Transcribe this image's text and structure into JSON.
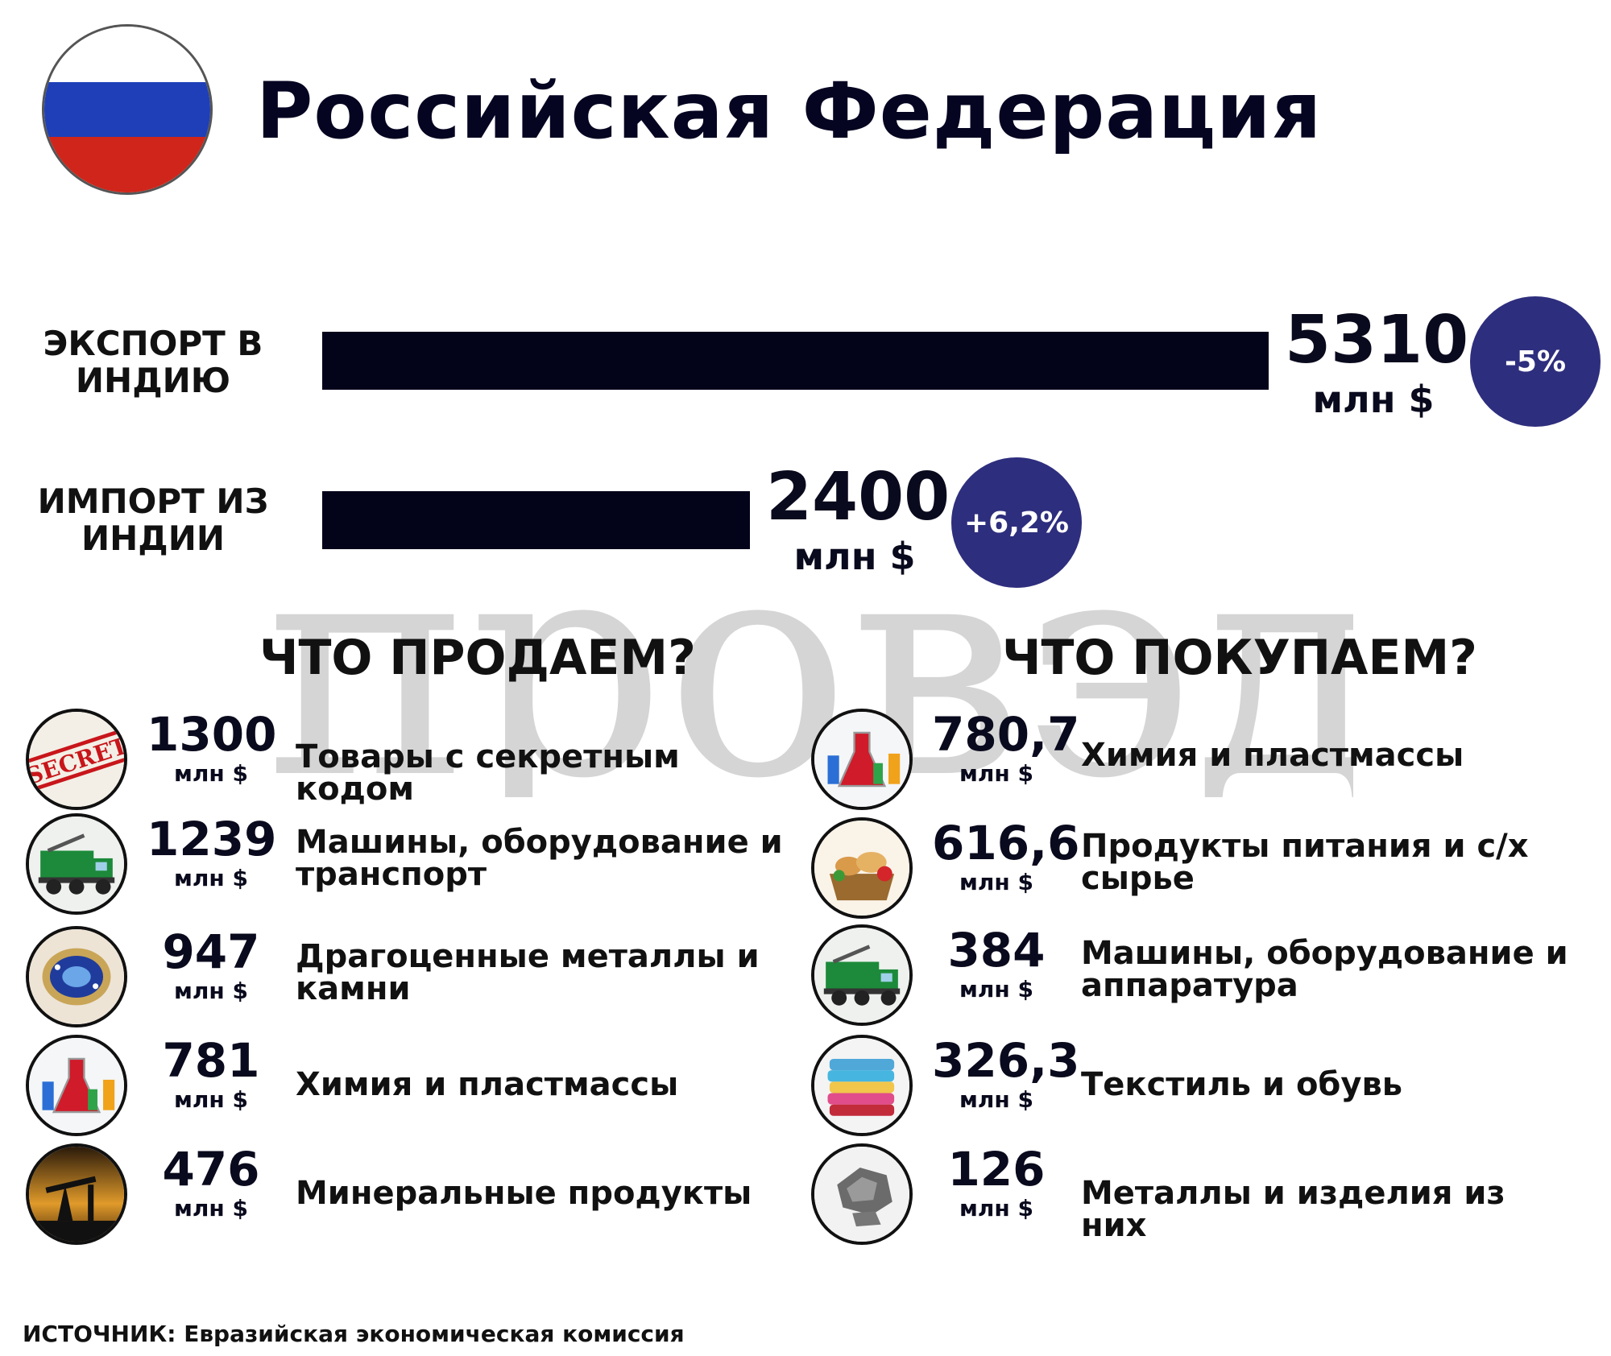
{
  "title": "Российская Федерация",
  "colors": {
    "flag": [
      "#ffffff",
      "#1e3fb8",
      "#d0251a"
    ],
    "badge": "#2e2e7e",
    "bar": "#03031a"
  },
  "watermark": "провэд",
  "trade": {
    "export": {
      "label": "ЭКСПОРТ В ИНДИЮ",
      "value": "5310",
      "unit": "млн $",
      "change": "-5%"
    },
    "import": {
      "label": "ИМПОРТ ИЗ ИНДИИ",
      "value": "2400",
      "unit": "млн $",
      "change": "+6,2%"
    }
  },
  "sell": {
    "heading": "ЧТО ПРОДАЕМ?",
    "items": [
      {
        "icon": "secret-stamp-icon",
        "value": "1300",
        "unit": "млн $",
        "label": "Товары с секретным кодом"
      },
      {
        "icon": "truck-icon",
        "value": "1239",
        "unit": "млн $",
        "label": "Машины, оборудование и транспорт"
      },
      {
        "icon": "gem-ring-icon",
        "value": "947",
        "unit": "млн $",
        "label": "Драгоценные металлы и камни"
      },
      {
        "icon": "chemistry-flasks-icon",
        "value": "781",
        "unit": "млн $",
        "label": "Химия и пластмассы"
      },
      {
        "icon": "oil-pump-icon",
        "value": "476",
        "unit": "млн $",
        "label": "Минеральные продукты"
      }
    ]
  },
  "buy": {
    "heading": "ЧТО ПОКУПАЕМ?",
    "items": [
      {
        "icon": "chemistry-flasks-icon",
        "value": "780,7",
        "unit": "млн $",
        "label": "Химия и пластмассы"
      },
      {
        "icon": "food-basket-icon",
        "value": "616,6",
        "unit": "млн $",
        "label": "Продукты питания и с/х сырье"
      },
      {
        "icon": "truck-icon",
        "value": "384",
        "unit": "млн $",
        "label": "Машины, оборудование и аппаратура"
      },
      {
        "icon": "textile-towels-icon",
        "value": "326,3",
        "unit": "млн $",
        "label": "Текстиль и обувь"
      },
      {
        "icon": "metal-ore-icon",
        "value": "126",
        "unit": "млн $",
        "label": "Металлы и изделия из них"
      }
    ]
  },
  "source": "ИСТОЧНИК: Евразийская экономическая комиссия",
  "chart_data": {
    "type": "bar",
    "title": "Российская Федерация",
    "unit": "млн $",
    "categories": [
      "ЭКСПОРТ В ИНДИЮ",
      "ИМПОРТ ИЗ ИНДИИ"
    ],
    "values": [
      5310,
      2400
    ],
    "changes": [
      "-5%",
      "+6,2%"
    ],
    "orientation": "horizontal"
  }
}
